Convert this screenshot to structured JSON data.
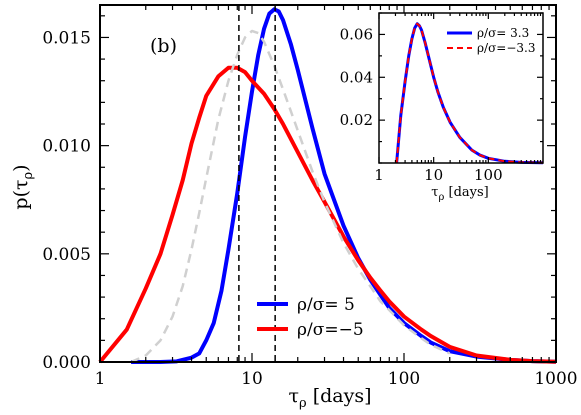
{
  "chart_data": [
    {
      "type": "line",
      "panel_label": "(b)",
      "xlabel_main": "τ",
      "xlabel_sub": "ρ",
      "xlabel_unit": " [days]",
      "ylabel_main": "p(τ",
      "ylabel_sub": "ρ",
      "ylabel_close": ")",
      "xscale": "log",
      "xlim": [
        1,
        1000
      ],
      "ylim": [
        0,
        0.0165
      ],
      "xticks": [
        1,
        10,
        100,
        1000
      ],
      "xtick_labels": [
        "1",
        "10",
        "100",
        "1000"
      ],
      "yticks": [
        0,
        0.005,
        0.01,
        0.015
      ],
      "ytick_labels": [
        "0.000",
        "0.005",
        "0.010",
        "0.015"
      ],
      "grid": false,
      "legend_position": "bottom-center",
      "series": [
        {
          "name": "ρ/σ= 5",
          "label_main": "ρ/σ= 5",
          "color": "#0000ff",
          "style": "solid",
          "x": [
            1.6,
            2.5,
            3.2,
            4,
            4.5,
            5,
            5.6,
            6.3,
            7,
            8,
            9,
            10,
            11,
            12,
            13,
            14,
            15,
            16,
            18,
            20,
            25,
            30,
            40,
            50,
            60,
            70,
            80,
            100,
            130,
            150,
            200,
            300,
            500,
            700,
            1000
          ],
          "y": [
            0,
            0,
            3e-05,
            0.0002,
            0.0004,
            0.001,
            0.0018,
            0.0033,
            0.0052,
            0.0078,
            0.0104,
            0.0125,
            0.0142,
            0.0154,
            0.0161,
            0.0163,
            0.0162,
            0.0158,
            0.0147,
            0.0135,
            0.0108,
            0.0087,
            0.0063,
            0.0048,
            0.0038,
            0.0031,
            0.0025,
            0.0018,
            0.0012,
            0.0009,
            0.0005,
            0.00025,
            0.0001,
            4e-05,
            1e-05
          ]
        },
        {
          "name": "ρ/σ=−5",
          "label_main": "ρ/σ=−5",
          "color": "#ff0000",
          "style": "solid",
          "x": [
            1,
            1.5,
            2,
            2.5,
            3,
            3.5,
            4,
            4.5,
            5,
            6,
            7,
            8,
            9,
            10,
            12,
            14,
            16,
            20,
            25,
            30,
            40,
            50,
            60,
            70,
            80,
            100,
            130,
            150,
            200,
            300,
            500,
            700,
            1000
          ],
          "y": [
            0,
            0.0015,
            0.0034,
            0.005,
            0.0068,
            0.0084,
            0.0101,
            0.0113,
            0.0123,
            0.0132,
            0.0136,
            0.0136,
            0.0134,
            0.013,
            0.0124,
            0.0117,
            0.011,
            0.0097,
            0.0084,
            0.0074,
            0.0058,
            0.0047,
            0.0039,
            0.0033,
            0.0028,
            0.0021,
            0.0015,
            0.0012,
            0.0007,
            0.0003,
            0.0001,
            4e-05,
            1e-05
          ]
        },
        {
          "color": "#d0d0d0",
          "style": "dashed",
          "x": [
            1.6,
            2,
            2.5,
            3,
            3.5,
            4,
            4.5,
            5,
            6,
            7,
            8,
            9,
            10,
            11,
            12,
            14,
            16,
            18,
            20,
            25,
            30,
            40,
            50,
            60,
            70,
            80,
            100,
            130,
            150,
            200
          ],
          "y": [
            0,
            0.0003,
            0.001,
            0.0021,
            0.0035,
            0.0052,
            0.0069,
            0.0085,
            0.0112,
            0.013,
            0.0142,
            0.015,
            0.0153,
            0.0152,
            0.0148,
            0.0137,
            0.0126,
            0.0116,
            0.0107,
            0.0088,
            0.0074,
            0.0055,
            0.0043,
            0.0035,
            0.0028,
            0.0024,
            0.0017,
            0.0011,
            0.0008,
            0.0004
          ]
        }
      ],
      "vlines": [
        8.2,
        14.2
      ]
    },
    {
      "type": "line",
      "xlabel_main": "τ",
      "xlabel_sub": "ρ",
      "xlabel_unit": " [days]",
      "xscale": "log",
      "xlim": [
        1,
        1000
      ],
      "ylim": [
        0,
        0.07
      ],
      "xticks": [
        1,
        10,
        100
      ],
      "xtick_labels": [
        "1",
        "10",
        "100"
      ],
      "yticks": [
        0.02,
        0.04,
        0.06
      ],
      "ytick_labels": [
        "0.02",
        "0.04",
        "0.06"
      ],
      "grid": false,
      "legend_position": "top-right",
      "series": [
        {
          "name": "ρ/σ= 3.3",
          "label_main": "ρ/σ= 3.3",
          "color": "#0000ff",
          "style": "solid",
          "x": [
            2.1,
            2.5,
            3,
            3.5,
            4,
            4.5,
            5,
            5.5,
            6,
            7,
            8,
            10,
            12,
            15,
            20,
            30,
            50,
            70,
            100,
            200,
            400,
            1000
          ],
          "y": [
            0,
            0.022,
            0.038,
            0.05,
            0.058,
            0.063,
            0.065,
            0.064,
            0.062,
            0.056,
            0.05,
            0.04,
            0.033,
            0.026,
            0.019,
            0.012,
            0.006,
            0.0037,
            0.0022,
            0.0008,
            0.0003,
            0.0001
          ]
        },
        {
          "name": "ρ/σ=−3.3",
          "label_main": "ρ/σ=−3.3",
          "color": "#ff0000",
          "style": "dashed",
          "x": [
            2.1,
            2.5,
            3,
            3.5,
            4,
            4.5,
            5,
            5.5,
            6,
            7,
            8,
            10,
            12,
            15,
            20,
            30,
            50,
            70,
            100,
            200,
            400,
            1000
          ],
          "y": [
            0,
            0.022,
            0.038,
            0.05,
            0.058,
            0.063,
            0.065,
            0.064,
            0.062,
            0.056,
            0.05,
            0.04,
            0.033,
            0.026,
            0.019,
            0.012,
            0.006,
            0.0037,
            0.0022,
            0.0008,
            0.0003,
            0.0001
          ]
        }
      ]
    }
  ]
}
